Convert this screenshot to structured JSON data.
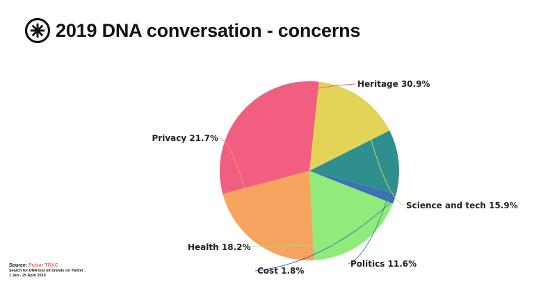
{
  "title": "2019 DNA conversation - concerns",
  "logo": {
    "icon": "pulsar-logo-icon"
  },
  "source": {
    "label": "Source:",
    "name": "Pulsar TRAC",
    "line1": "Search for DNA test kit brands on Twitter ,",
    "line2": "1 Jan - 25 April 2019"
  },
  "chart_data": {
    "type": "pie",
    "title": "2019 DNA conversation - concerns",
    "slices": [
      {
        "name": "Heritage",
        "value": 30.9,
        "label": "Heritage 30.9%",
        "color": "#f25d82"
      },
      {
        "name": "Science and tech",
        "value": 15.9,
        "label": "Science and tech 15.9%",
        "color": "#e3d357"
      },
      {
        "name": "Politics",
        "value": 11.6,
        "label": "Politics 11.6%",
        "color": "#2e8f8e"
      },
      {
        "name": "Cost",
        "value": 1.8,
        "label": "Cost 1.8%",
        "color": "#3f6fb5"
      },
      {
        "name": "Health",
        "value": 18.2,
        "label": "Health 18.2%",
        "color": "#90eb7a"
      },
      {
        "name": "Privacy",
        "value": 21.7,
        "label": "Privacy 21.7%",
        "color": "#f6a45f"
      }
    ]
  }
}
